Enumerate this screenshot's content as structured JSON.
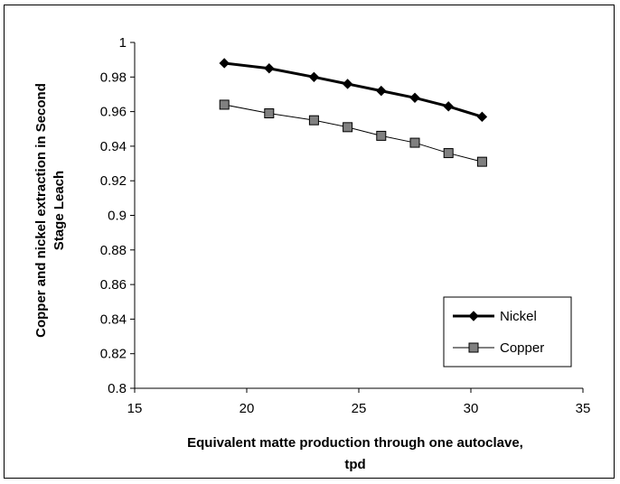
{
  "chart_data": {
    "type": "line",
    "title": "",
    "xlabel_lines": [
      "Equivalent matte production through one autoclave,",
      "tpd"
    ],
    "ylabel_lines": [
      "Copper and nickel extraction in Second",
      "Stage Leach"
    ],
    "xlim": [
      15,
      35
    ],
    "ylim": [
      0.8,
      1.0
    ],
    "x_ticks": [
      15,
      20,
      25,
      30,
      35
    ],
    "y_ticks": [
      0.8,
      0.82,
      0.84,
      0.86,
      0.88,
      0.9,
      0.92,
      0.94,
      0.96,
      0.98,
      1
    ],
    "grid": false,
    "legend_position": "bottom-right",
    "x": [
      19,
      21,
      23,
      24.5,
      26,
      27.5,
      29,
      30.5
    ],
    "series": [
      {
        "name": "Nickel",
        "marker": "diamond",
        "color": "#000000",
        "values": [
          0.988,
          0.985,
          0.98,
          0.976,
          0.972,
          0.968,
          0.963,
          0.957
        ]
      },
      {
        "name": "Copper",
        "marker": "square",
        "color": "#000000",
        "marker_fill": "#808080",
        "values": [
          0.964,
          0.959,
          0.955,
          0.951,
          0.946,
          0.942,
          0.936,
          0.931
        ]
      }
    ]
  }
}
